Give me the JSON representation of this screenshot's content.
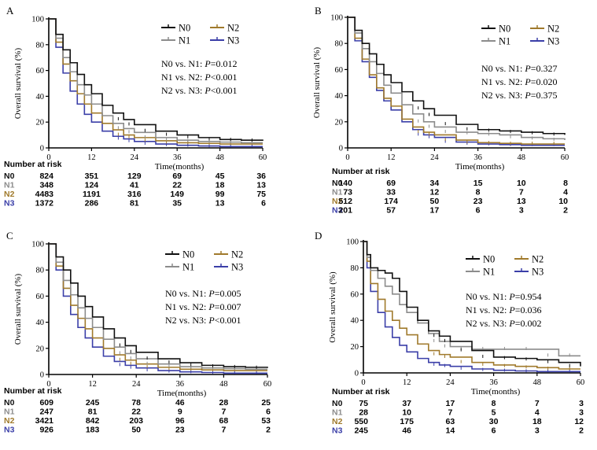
{
  "colors": {
    "N0": "#111111",
    "N1": "#8c8c8c",
    "N2": "#a07a2c",
    "N3": "#3b3fa8"
  },
  "chart_data": [
    {
      "panel": "A",
      "type": "line",
      "xlabel": "Time(months)",
      "ylabel": "Overall survival (%)",
      "xlim": [
        0,
        60
      ],
      "ylim": [
        0,
        100
      ],
      "xticks": [
        0,
        12,
        24,
        36,
        48,
        60
      ],
      "yticks": [
        0,
        20,
        40,
        60,
        80,
        100
      ],
      "legend": [
        "N0",
        "N1",
        "N2",
        "N3"
      ],
      "pvalues": [
        {
          "comparison": "N0 vs. N1:",
          "p": "P",
          "value": "=0.012"
        },
        {
          "comparison": "N1 vs. N2:",
          "p": "P",
          "value": "<0.001"
        },
        {
          "comparison": "N2 vs. N3:",
          "p": "P",
          "value": "<0.001"
        }
      ],
      "series": [
        {
          "name": "N0",
          "x": [
            0,
            2,
            4,
            6,
            8,
            10,
            12,
            15,
            18,
            21,
            24,
            30,
            36,
            42,
            48,
            54,
            60
          ],
          "y": [
            100,
            88,
            76,
            66,
            57,
            49,
            42,
            33,
            27,
            22,
            18,
            13,
            10,
            8,
            6.5,
            6,
            5.5
          ]
        },
        {
          "name": "N1",
          "x": [
            0,
            2,
            4,
            6,
            8,
            10,
            12,
            15,
            18,
            21,
            24,
            30,
            36,
            42,
            48,
            54,
            60
          ],
          "y": [
            100,
            85,
            70,
            59,
            49,
            41,
            34,
            25,
            19,
            15,
            12,
            8,
            6,
            5,
            4.5,
            4,
            4
          ]
        },
        {
          "name": "N2",
          "x": [
            0,
            2,
            4,
            6,
            8,
            10,
            12,
            15,
            18,
            21,
            24,
            30,
            36,
            42,
            48,
            54,
            60
          ],
          "y": [
            100,
            82,
            65,
            52,
            42,
            34,
            27,
            19,
            14,
            10,
            8,
            5.5,
            4,
            3.5,
            3,
            3,
            3
          ]
        },
        {
          "name": "N3",
          "x": [
            0,
            2,
            4,
            6,
            8,
            10,
            12,
            15,
            18,
            21,
            24,
            30,
            36,
            42,
            48,
            54,
            60
          ],
          "y": [
            100,
            78,
            58,
            44,
            34,
            26,
            20,
            13,
            9,
            7,
            5,
            3,
            2,
            1.5,
            1,
            1,
            1
          ]
        }
      ],
      "risk_table": {
        "title": "Number at risk",
        "rows": [
          {
            "label": "N0",
            "values": [
              "824",
              "351",
              "129",
              "69",
              "45",
              "36"
            ]
          },
          {
            "label": "N1",
            "values": [
              "348",
              "124",
              "41",
              "22",
              "18",
              "13"
            ]
          },
          {
            "label": "N2",
            "values": [
              "4483",
              "1191",
              "316",
              "149",
              "99",
              "75"
            ]
          },
          {
            "label": "N3",
            "values": [
              "1372",
              "286",
              "81",
              "35",
              "13",
              "6"
            ]
          }
        ]
      }
    },
    {
      "panel": "B",
      "type": "line",
      "xlabel": "Time(months)",
      "ylabel": "Overall survival (%)",
      "xlim": [
        0,
        60
      ],
      "ylim": [
        0,
        100
      ],
      "xticks": [
        0,
        12,
        24,
        36,
        48,
        60
      ],
      "yticks": [
        0,
        20,
        40,
        60,
        80,
        100
      ],
      "legend": [
        "N0",
        "N1",
        "N2",
        "N3"
      ],
      "pvalues": [
        {
          "comparison": "N0 vs. N1:",
          "p": "P",
          "value": "=0.327"
        },
        {
          "comparison": "N1 vs. N2:",
          "p": "P",
          "value": "=0.020"
        },
        {
          "comparison": "N2 vs. N3:",
          "p": "P",
          "value": "=0.375"
        }
      ],
      "series": [
        {
          "name": "N0",
          "x": [
            0,
            2,
            4,
            6,
            8,
            10,
            12,
            15,
            18,
            21,
            24,
            30,
            36,
            42,
            48,
            54,
            60
          ],
          "y": [
            100,
            90,
            80,
            72,
            64,
            56,
            50,
            43,
            36,
            30,
            25,
            18,
            14,
            13,
            12,
            11,
            10
          ]
        },
        {
          "name": "N1",
          "x": [
            0,
            2,
            4,
            6,
            8,
            10,
            12,
            15,
            18,
            21,
            24,
            30,
            36,
            42,
            48,
            54,
            60
          ],
          "y": [
            100,
            88,
            76,
            66,
            57,
            48,
            42,
            33,
            26,
            20,
            16,
            12,
            11,
            10,
            8,
            7,
            6
          ]
        },
        {
          "name": "N2",
          "x": [
            0,
            2,
            4,
            6,
            8,
            10,
            12,
            15,
            18,
            21,
            24,
            30,
            36,
            42,
            48,
            54,
            60
          ],
          "y": [
            100,
            84,
            68,
            56,
            46,
            38,
            32,
            22,
            16,
            12,
            10,
            6,
            4,
            3.5,
            3,
            3,
            3
          ]
        },
        {
          "name": "N3",
          "x": [
            0,
            2,
            4,
            6,
            8,
            10,
            12,
            15,
            18,
            21,
            24,
            30,
            36,
            42,
            48,
            54,
            60
          ],
          "y": [
            100,
            82,
            66,
            54,
            44,
            36,
            29,
            20,
            14,
            10,
            8,
            4.5,
            3,
            2.5,
            2,
            2,
            2
          ]
        }
      ],
      "risk_table": {
        "title": "Number at risk",
        "rows": [
          {
            "label": "N0",
            "values": [
              "140",
              "69",
              "34",
              "15",
              "10",
              "8"
            ]
          },
          {
            "label": "N1",
            "values": [
              "73",
              "33",
              "12",
              "8",
              "7",
              "4"
            ]
          },
          {
            "label": "N2",
            "values": [
              "512",
              "174",
              "50",
              "23",
              "13",
              "10"
            ]
          },
          {
            "label": "N3",
            "values": [
              "201",
              "57",
              "17",
              "6",
              "3",
              "2"
            ]
          }
        ]
      }
    },
    {
      "panel": "C",
      "type": "line",
      "xlabel": "Time(months)",
      "ylabel": "Overall survival (%)",
      "xlim": [
        0,
        60
      ],
      "ylim": [
        0,
        100
      ],
      "xticks": [
        0,
        12,
        24,
        36,
        48,
        60
      ],
      "yticks": [
        0,
        20,
        40,
        60,
        80,
        100
      ],
      "legend": [
        "N0",
        "N1",
        "N2",
        "N3"
      ],
      "pvalues": [
        {
          "comparison": "N0 vs. N1:",
          "p": "P",
          "value": "=0.005"
        },
        {
          "comparison": "N1 vs. N2:",
          "p": "P",
          "value": "=0.007"
        },
        {
          "comparison": "N2 vs. N3:",
          "p": "P",
          "value": "<0.001"
        }
      ],
      "series": [
        {
          "name": "N0",
          "x": [
            0,
            2,
            4,
            6,
            8,
            10,
            12,
            15,
            18,
            21,
            24,
            30,
            36,
            42,
            48,
            54,
            60
          ],
          "y": [
            100,
            90,
            80,
            70,
            60,
            52,
            44,
            35,
            28,
            22,
            17,
            12,
            9,
            7,
            6,
            5.5,
            5
          ]
        },
        {
          "name": "N1",
          "x": [
            0,
            2,
            4,
            6,
            8,
            10,
            12,
            15,
            18,
            21,
            24,
            30,
            36,
            42,
            48,
            54,
            60
          ],
          "y": [
            100,
            86,
            72,
            61,
            51,
            43,
            36,
            27,
            21,
            16,
            12,
            8,
            6,
            5,
            4.5,
            4,
            4
          ]
        },
        {
          "name": "N2",
          "x": [
            0,
            2,
            4,
            6,
            8,
            10,
            12,
            15,
            18,
            21,
            24,
            30,
            36,
            42,
            48,
            54,
            60
          ],
          "y": [
            100,
            83,
            66,
            53,
            43,
            35,
            28,
            20,
            15,
            11,
            8,
            5.5,
            4,
            3.5,
            3,
            3,
            3
          ]
        },
        {
          "name": "N3",
          "x": [
            0,
            2,
            4,
            6,
            8,
            10,
            12,
            15,
            18,
            21,
            24,
            30,
            36,
            42,
            48,
            54,
            60
          ],
          "y": [
            100,
            80,
            60,
            46,
            36,
            28,
            21,
            14,
            10,
            7,
            5,
            3,
            2,
            1.5,
            1,
            1,
            1
          ]
        }
      ],
      "risk_table": {
        "title": "Number at risk",
        "rows": [
          {
            "label": "N0",
            "values": [
              "609",
              "245",
              "78",
              "46",
              "28",
              "25"
            ]
          },
          {
            "label": "N1",
            "values": [
              "247",
              "81",
              "22",
              "9",
              "7",
              "6"
            ]
          },
          {
            "label": "N2",
            "values": [
              "3421",
              "842",
              "203",
              "96",
              "68",
              "53"
            ]
          },
          {
            "label": "N3",
            "values": [
              "926",
              "183",
              "50",
              "23",
              "7",
              "2"
            ]
          }
        ]
      }
    },
    {
      "panel": "D",
      "type": "line",
      "xlabel": "Time(months)",
      "ylabel": "Overall survival (%)",
      "xlim": [
        0,
        60
      ],
      "ylim": [
        0,
        100
      ],
      "xticks": [
        0,
        12,
        24,
        36,
        48,
        60
      ],
      "yticks": [
        0,
        20,
        40,
        60,
        80,
        100
      ],
      "legend": [
        "N0",
        "N1",
        "N2",
        "N3"
      ],
      "pvalues": [
        {
          "comparison": "N0 vs. N1:",
          "p": "P",
          "value": "=0.954"
        },
        {
          "comparison": "N1 vs. N2:",
          "p": "P",
          "value": "=0.036"
        },
        {
          "comparison": "N2 vs. N3:",
          "p": "P",
          "value": "=0.002"
        }
      ],
      "series": [
        {
          "name": "N0",
          "x": [
            0,
            1,
            2,
            4,
            6,
            8,
            10,
            12,
            15,
            18,
            21,
            24,
            30,
            36,
            42,
            48,
            54,
            60
          ],
          "y": [
            100,
            90,
            80,
            78,
            76,
            72,
            62,
            50,
            40,
            32,
            28,
            24,
            17,
            12,
            11,
            10,
            8,
            5
          ]
        },
        {
          "name": "N1",
          "x": [
            0,
            1,
            2,
            4,
            6,
            8,
            10,
            12,
            15,
            18,
            21,
            24,
            30,
            36,
            42,
            48,
            54,
            60
          ],
          "y": [
            100,
            88,
            78,
            72,
            66,
            60,
            52,
            46,
            38,
            30,
            24,
            20,
            18,
            18,
            18,
            18,
            13,
            13
          ]
        },
        {
          "name": "N2",
          "x": [
            0,
            1,
            2,
            4,
            6,
            8,
            10,
            12,
            15,
            18,
            21,
            24,
            30,
            36,
            42,
            48,
            54,
            60
          ],
          "y": [
            100,
            85,
            68,
            56,
            47,
            40,
            34,
            29,
            22,
            17,
            14,
            12,
            8,
            6,
            5,
            4,
            3,
            3
          ]
        },
        {
          "name": "N3",
          "x": [
            0,
            1,
            2,
            4,
            6,
            8,
            10,
            12,
            15,
            18,
            21,
            24,
            30,
            36,
            42,
            48,
            54,
            60
          ],
          "y": [
            100,
            80,
            62,
            46,
            35,
            27,
            21,
            16,
            11,
            8,
            6,
            5,
            3,
            2,
            1.5,
            1,
            1,
            1
          ]
        }
      ],
      "risk_table": {
        "title": "Number at risk",
        "rows": [
          {
            "label": "N0",
            "values": [
              "75",
              "37",
              "17",
              "8",
              "7",
              "3"
            ]
          },
          {
            "label": "N1",
            "values": [
              "28",
              "10",
              "7",
              "5",
              "4",
              "3"
            ]
          },
          {
            "label": "N2",
            "values": [
              "550",
              "175",
              "63",
              "30",
              "18",
              "12"
            ]
          },
          {
            "label": "N3",
            "values": [
              "245",
              "46",
              "14",
              "6",
              "3",
              "2"
            ]
          }
        ]
      }
    }
  ]
}
